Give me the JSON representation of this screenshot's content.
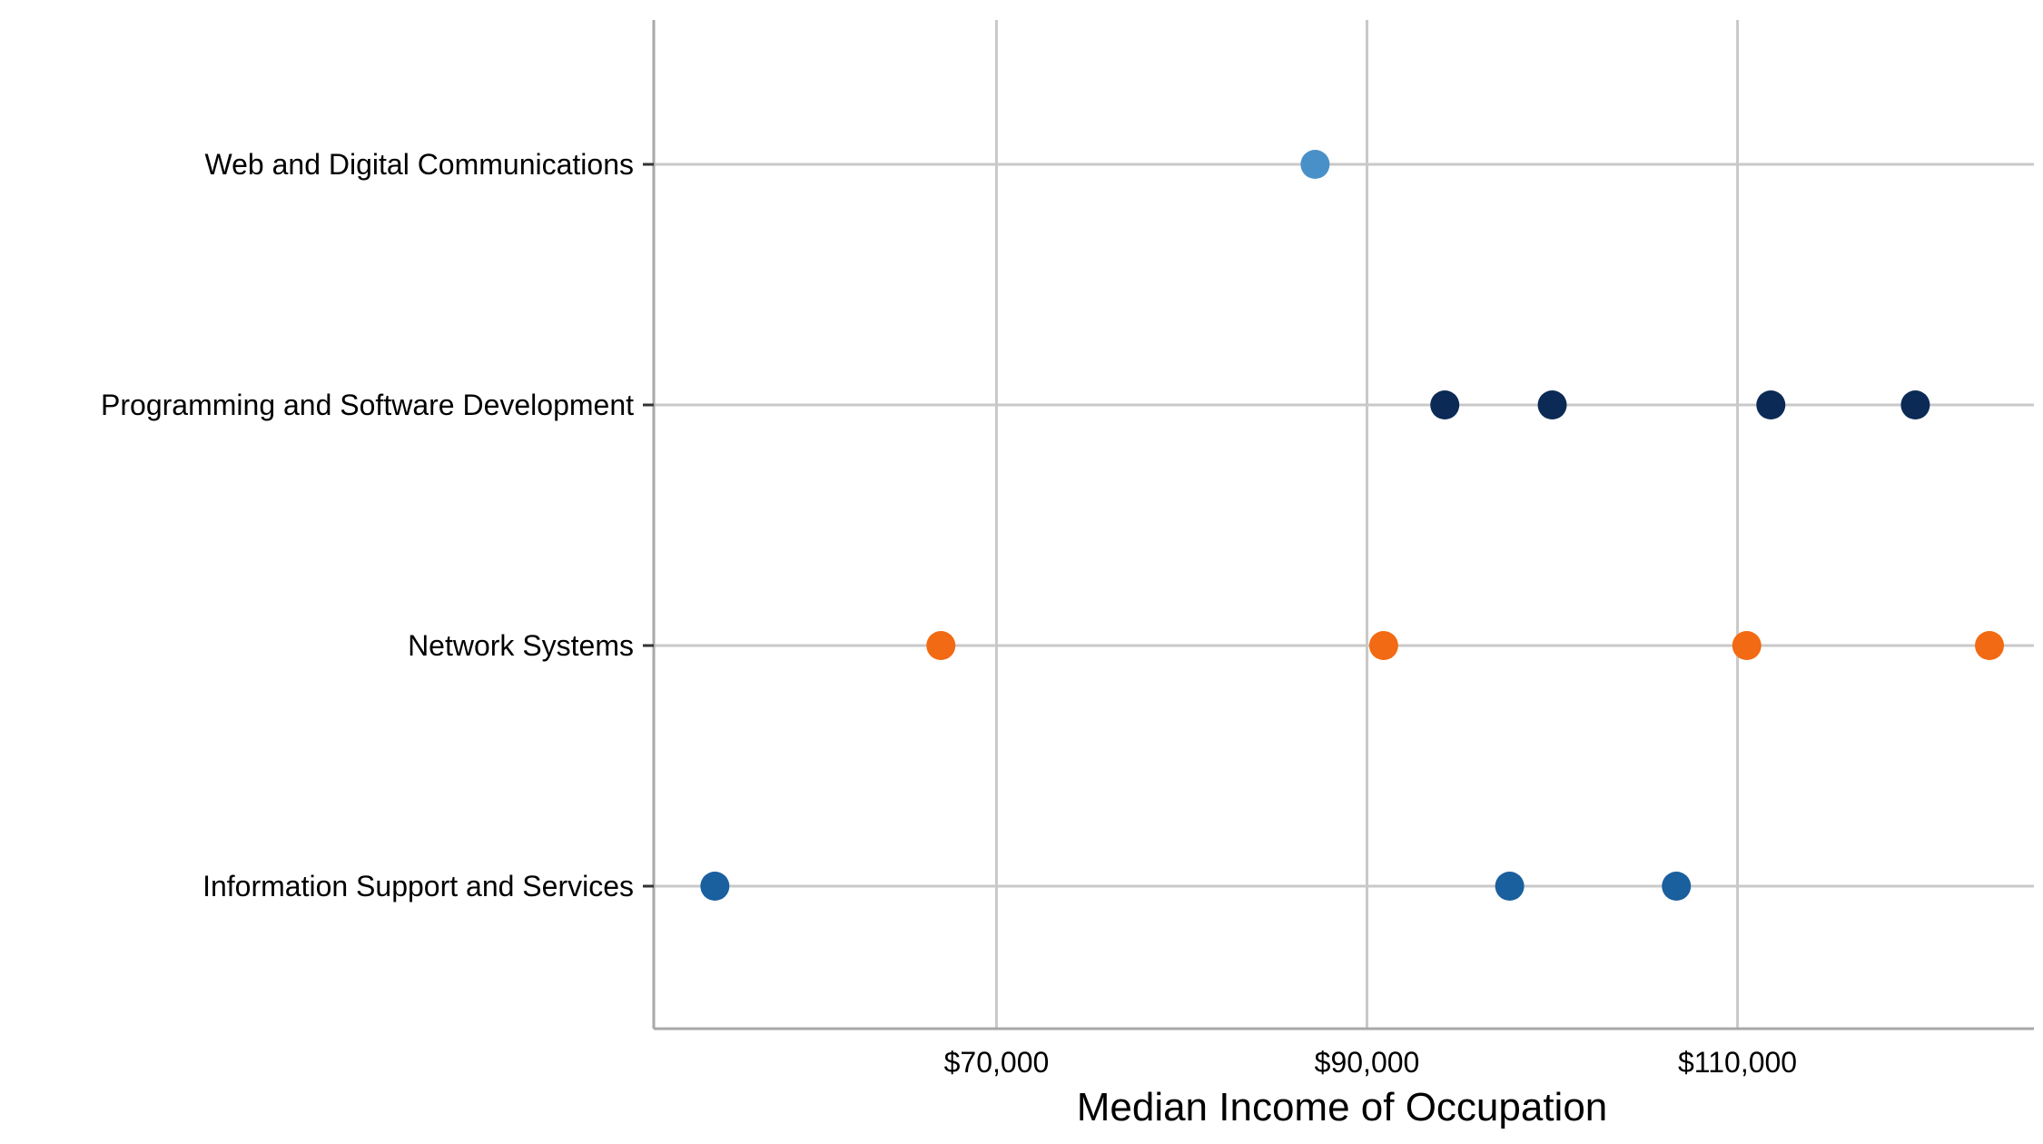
{
  "chart_data": {
    "type": "scatter",
    "title": "",
    "xlabel": "Median Income of Occupation",
    "ylabel": "",
    "xlim": [
      51500,
      126000
    ],
    "x_ticks": [
      70000,
      90000,
      110000
    ],
    "x_tick_labels": [
      "$70,000",
      "$90,000",
      "$110,000"
    ],
    "categories": [
      "Information Support and Services",
      "Network Systems",
      "Programming and Software Development",
      "Web and Digital Communications"
    ],
    "grid": true,
    "legend": "none",
    "series": [
      {
        "category": "Web and Digital Communications",
        "color": "#4a90c8",
        "values": [
          87200
        ]
      },
      {
        "category": "Programming and Software Development",
        "color": "#0b2a55",
        "values": [
          94200,
          100000,
          111800,
          119600
        ]
      },
      {
        "category": "Network Systems",
        "color": "#f26a13",
        "values": [
          67000,
          90900,
          110500,
          123600
        ]
      },
      {
        "category": "Information Support and Services",
        "color": "#1a5f9e",
        "values": [
          54800,
          97700,
          106700
        ]
      }
    ]
  }
}
